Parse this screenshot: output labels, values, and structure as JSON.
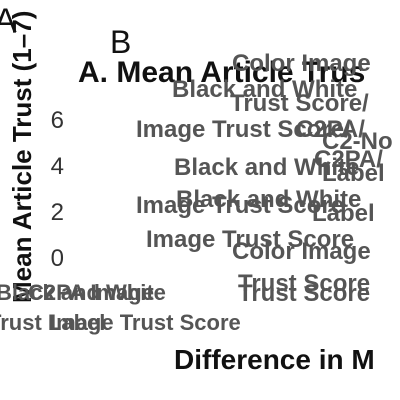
{
  "panels": {
    "a": "A",
    "b": "B"
  },
  "title": "A. Mean Article Trus",
  "ylabel": "Mean Article Trust (1–7)",
  "xlabel": "Difference in M",
  "chart_data": {
    "type": "bar",
    "title": "A. Mean Article Trus",
    "ylabel": "Mean Article Trust (1–7)",
    "xlabel": "Difference in M",
    "yticks": [
      "6",
      "4",
      "2",
      "0"
    ],
    "ylim": [
      0,
      7
    ]
  },
  "overlapping_labels": [
    {
      "text": "Color Image",
      "cls": "gray c24"
    },
    {
      "text": "Black and White",
      "cls": "gray c24"
    },
    {
      "text": "Trust Score/",
      "cls": "gray c24"
    },
    {
      "text": "Image Trust Score/",
      "cls": "gray c24"
    },
    {
      "text": "C2PA/",
      "cls": "gray c24"
    },
    {
      "text": "C2-No",
      "cls": "gray c24"
    },
    {
      "text": "Black and White",
      "cls": "gray c24"
    },
    {
      "text": "C2PA/",
      "cls": "gray c24"
    },
    {
      "text": "Label",
      "cls": "gray c24"
    },
    {
      "text": "Black and White",
      "cls": "gray c24"
    },
    {
      "text": "Image Trust Score",
      "cls": "gray c24"
    },
    {
      "text": "Label",
      "cls": "gray c24"
    },
    {
      "text": "Image Trust Score",
      "cls": "gray c24"
    },
    {
      "text": "Color Image",
      "cls": "gray c24"
    },
    {
      "text": "Trust Score",
      "cls": "gray c24"
    },
    {
      "text": "Trust Score",
      "cls": "gray c24"
    },
    {
      "text": "Black and White",
      "cls": "gray c22"
    },
    {
      "text": "C2PA Image",
      "cls": "gray c22"
    },
    {
      "text": "Trust Label",
      "cls": "gray c22"
    },
    {
      "text": "Image Trust Score",
      "cls": "gray c22"
    }
  ]
}
